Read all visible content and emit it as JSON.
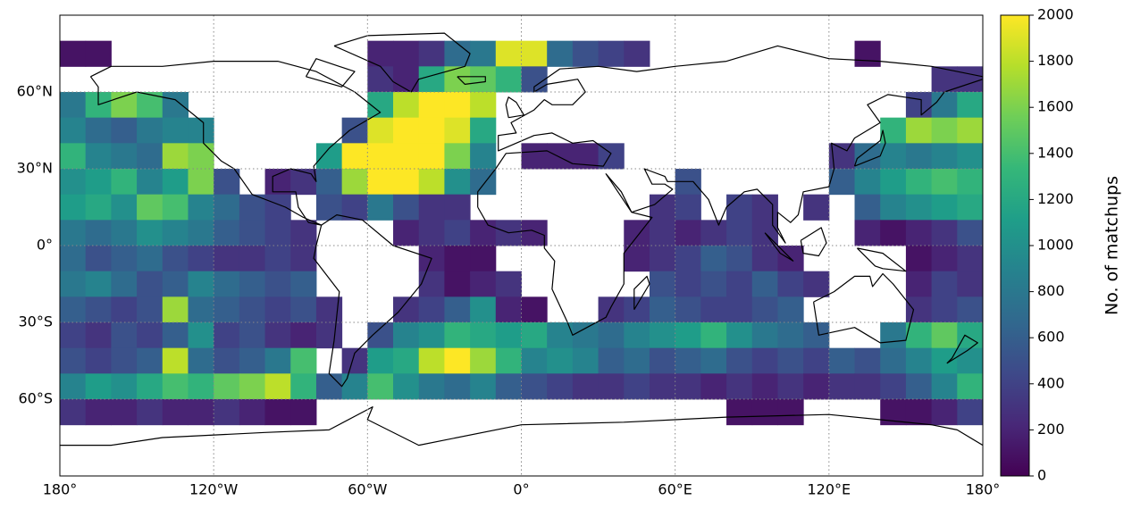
{
  "chart_data": {
    "type": "heatmap",
    "colormap": "viridis",
    "grid": true,
    "colorbar_label": "No. of matchups",
    "clim": [
      0,
      2000
    ],
    "cticks": [
      0,
      200,
      400,
      600,
      800,
      1000,
      1200,
      1400,
      1600,
      1800,
      2000
    ],
    "xlim": [
      -180,
      180
    ],
    "ylim": [
      -90,
      90
    ],
    "xticks": [
      {
        "value": -180,
        "label": "180°"
      },
      {
        "value": -120,
        "label": "120°W"
      },
      {
        "value": -60,
        "label": "60°W"
      },
      {
        "value": 0,
        "label": "0°"
      },
      {
        "value": 60,
        "label": "60°E"
      },
      {
        "value": 120,
        "label": "120°E"
      },
      {
        "value": 180,
        "label": "180°"
      }
    ],
    "yticks": [
      {
        "value": 60,
        "label": "60°N"
      },
      {
        "value": 30,
        "label": "30°N"
      },
      {
        "value": 0,
        "label": "0°"
      },
      {
        "value": -30,
        "label": "30°S"
      },
      {
        "value": -60,
        "label": "60°S"
      }
    ],
    "x": [
      -175,
      -165,
      -155,
      -145,
      -135,
      -125,
      -115,
      -105,
      -95,
      -85,
      -75,
      -65,
      -55,
      -45,
      -35,
      -25,
      -15,
      -5,
      5,
      15,
      25,
      35,
      45,
      55,
      65,
      75,
      85,
      95,
      105,
      115,
      125,
      135,
      145,
      155,
      165,
      175
    ],
    "y": [
      75,
      65,
      55,
      45,
      35,
      25,
      15,
      5,
      -5,
      -15,
      -25,
      -35,
      -45,
      -55,
      -65
    ],
    "values": [
      [
        100,
        100,
        null,
        null,
        null,
        null,
        null,
        null,
        null,
        null,
        null,
        null,
        200,
        200,
        300,
        700,
        800,
        1900,
        1900,
        700,
        500,
        400,
        300,
        null,
        null,
        null,
        null,
        null,
        null,
        null,
        null,
        100,
        null,
        null,
        null,
        null
      ],
      [
        null,
        null,
        null,
        null,
        null,
        null,
        null,
        null,
        null,
        null,
        null,
        null,
        300,
        200,
        1200,
        1600,
        1500,
        1300,
        500,
        null,
        null,
        null,
        null,
        null,
        null,
        null,
        null,
        null,
        null,
        null,
        null,
        null,
        null,
        null,
        300,
        300
      ],
      [
        800,
        1300,
        1600,
        1400,
        800,
        null,
        null,
        null,
        null,
        null,
        null,
        null,
        1200,
        1800,
        2000,
        2000,
        1800,
        null,
        null,
        null,
        null,
        null,
        null,
        null,
        null,
        null,
        null,
        null,
        null,
        null,
        null,
        null,
        null,
        400,
        800,
        1200
      ],
      [
        900,
        700,
        600,
        800,
        900,
        900,
        null,
        null,
        null,
        null,
        null,
        500,
        1900,
        2000,
        2000,
        1900,
        1200,
        null,
        null,
        null,
        null,
        null,
        null,
        null,
        null,
        null,
        null,
        null,
        null,
        null,
        null,
        null,
        1300,
        1700,
        1600,
        1700
      ],
      [
        1300,
        900,
        800,
        700,
        1700,
        1600,
        null,
        null,
        null,
        null,
        1100,
        2000,
        2000,
        2000,
        2000,
        1600,
        900,
        null,
        200,
        200,
        200,
        400,
        null,
        null,
        null,
        null,
        null,
        null,
        null,
        null,
        300,
        700,
        900,
        800,
        900,
        1000
      ],
      [
        1000,
        1100,
        1300,
        900,
        1100,
        1600,
        500,
        null,
        200,
        300,
        600,
        1700,
        2000,
        2000,
        1800,
        1000,
        700,
        null,
        null,
        null,
        null,
        null,
        null,
        null,
        500,
        null,
        null,
        null,
        null,
        null,
        600,
        900,
        1100,
        1300,
        1400,
        1300
      ],
      [
        1100,
        1200,
        1000,
        1500,
        1400,
        900,
        700,
        500,
        400,
        null,
        500,
        400,
        800,
        500,
        300,
        300,
        null,
        null,
        null,
        null,
        null,
        null,
        null,
        300,
        400,
        null,
        400,
        300,
        null,
        300,
        null,
        600,
        900,
        1000,
        1100,
        1200
      ],
      [
        800,
        700,
        800,
        1000,
        900,
        800,
        600,
        500,
        400,
        300,
        null,
        null,
        null,
        200,
        300,
        400,
        200,
        300,
        200,
        null,
        null,
        null,
        200,
        300,
        200,
        300,
        400,
        300,
        null,
        null,
        null,
        200,
        100,
        200,
        300,
        500
      ],
      [
        700,
        500,
        600,
        700,
        500,
        400,
        300,
        300,
        400,
        300,
        null,
        null,
        null,
        null,
        200,
        100,
        100,
        null,
        null,
        null,
        null,
        null,
        200,
        300,
        400,
        600,
        500,
        300,
        200,
        null,
        null,
        null,
        null,
        100,
        200,
        300
      ],
      [
        800,
        900,
        700,
        500,
        600,
        900,
        700,
        600,
        500,
        600,
        null,
        null,
        null,
        null,
        300,
        100,
        200,
        300,
        null,
        null,
        null,
        null,
        null,
        500,
        400,
        500,
        400,
        600,
        400,
        300,
        null,
        null,
        null,
        200,
        400,
        300
      ],
      [
        600,
        500,
        400,
        500,
        1700,
        700,
        600,
        500,
        400,
        500,
        300,
        null,
        null,
        300,
        400,
        600,
        1000,
        200,
        100,
        null,
        null,
        300,
        400,
        600,
        500,
        400,
        400,
        500,
        600,
        null,
        null,
        null,
        null,
        300,
        400,
        500
      ],
      [
        400,
        300,
        500,
        400,
        600,
        1000,
        400,
        500,
        300,
        200,
        300,
        null,
        500,
        900,
        1000,
        1300,
        1200,
        1100,
        1200,
        900,
        800,
        700,
        900,
        1000,
        1100,
        1300,
        1000,
        800,
        700,
        600,
        null,
        null,
        800,
        1300,
        1500,
        1200
      ],
      [
        500,
        400,
        500,
        600,
        1800,
        700,
        500,
        600,
        800,
        1400,
        null,
        300,
        1100,
        1200,
        1800,
        2000,
        1700,
        1300,
        900,
        1000,
        900,
        600,
        700,
        500,
        600,
        700,
        500,
        400,
        500,
        400,
        600,
        500,
        700,
        900,
        1100,
        1000
      ],
      [
        900,
        1100,
        1000,
        1200,
        1400,
        1300,
        1500,
        1600,
        1800,
        1300,
        600,
        900,
        1400,
        1000,
        800,
        700,
        900,
        600,
        500,
        400,
        300,
        300,
        400,
        300,
        300,
        200,
        300,
        200,
        300,
        200,
        300,
        300,
        400,
        600,
        900,
        1300
      ],
      [
        300,
        200,
        200,
        300,
        200,
        200,
        300,
        200,
        100,
        100,
        null,
        null,
        null,
        null,
        null,
        null,
        null,
        null,
        null,
        null,
        null,
        null,
        null,
        null,
        null,
        null,
        100,
        100,
        100,
        null,
        null,
        null,
        100,
        100,
        200,
        400
      ]
    ]
  }
}
